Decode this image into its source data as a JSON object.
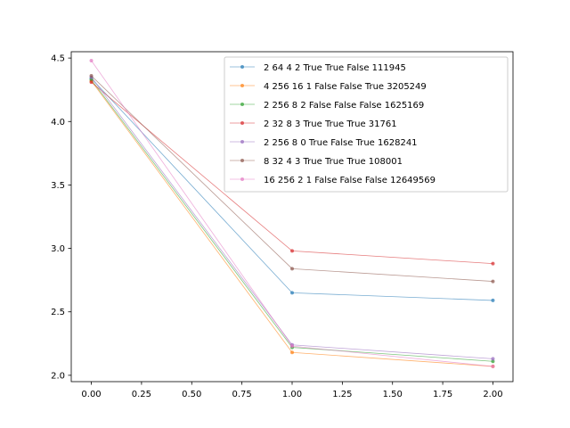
{
  "chart_data": {
    "type": "line",
    "title": "",
    "xlabel": "",
    "ylabel": "",
    "xlim": [
      -0.1,
      2.1
    ],
    "ylim": [
      1.95,
      4.55
    ],
    "x_ticks": [
      0.0,
      0.25,
      0.5,
      0.75,
      1.0,
      1.25,
      1.5,
      1.75,
      2.0
    ],
    "x_tick_labels": [
      "0.00",
      "0.25",
      "0.50",
      "0.75",
      "1.00",
      "1.25",
      "1.50",
      "1.75",
      "2.00"
    ],
    "y_ticks": [
      2.0,
      2.5,
      3.0,
      3.5,
      4.0,
      4.5
    ],
    "y_tick_labels": [
      "2.0",
      "2.5",
      "3.0",
      "3.5",
      "4.0",
      "4.5"
    ],
    "grid": false,
    "legend_position": "top-right",
    "x": [
      0,
      1,
      2
    ],
    "series": [
      {
        "name": "2 64 4 2 True True False 111945",
        "color": "#1f77b4",
        "values": [
          4.34,
          2.65,
          2.59
        ]
      },
      {
        "name": "4 256 16 1 False False True 3205249",
        "color": "#ff7f0e",
        "values": [
          4.32,
          2.18,
          2.07
        ]
      },
      {
        "name": "2 256 8 2 False False False 1625169",
        "color": "#2ca02c",
        "values": [
          4.33,
          2.22,
          2.11
        ]
      },
      {
        "name": "2 32 8 3 True True True 31761",
        "color": "#d62728",
        "values": [
          4.31,
          2.98,
          2.88
        ]
      },
      {
        "name": "2 256 8 0 True False True 1628241",
        "color": "#9467bd",
        "values": [
          4.35,
          2.24,
          2.13
        ]
      },
      {
        "name": "8 32 4 3 True True True 108001",
        "color": "#8c564b",
        "values": [
          4.36,
          2.84,
          2.74
        ]
      },
      {
        "name": "16 256 2 1 False False False 12649569",
        "color": "#e377c2",
        "values": [
          4.48,
          2.23,
          2.07
        ]
      }
    ]
  }
}
